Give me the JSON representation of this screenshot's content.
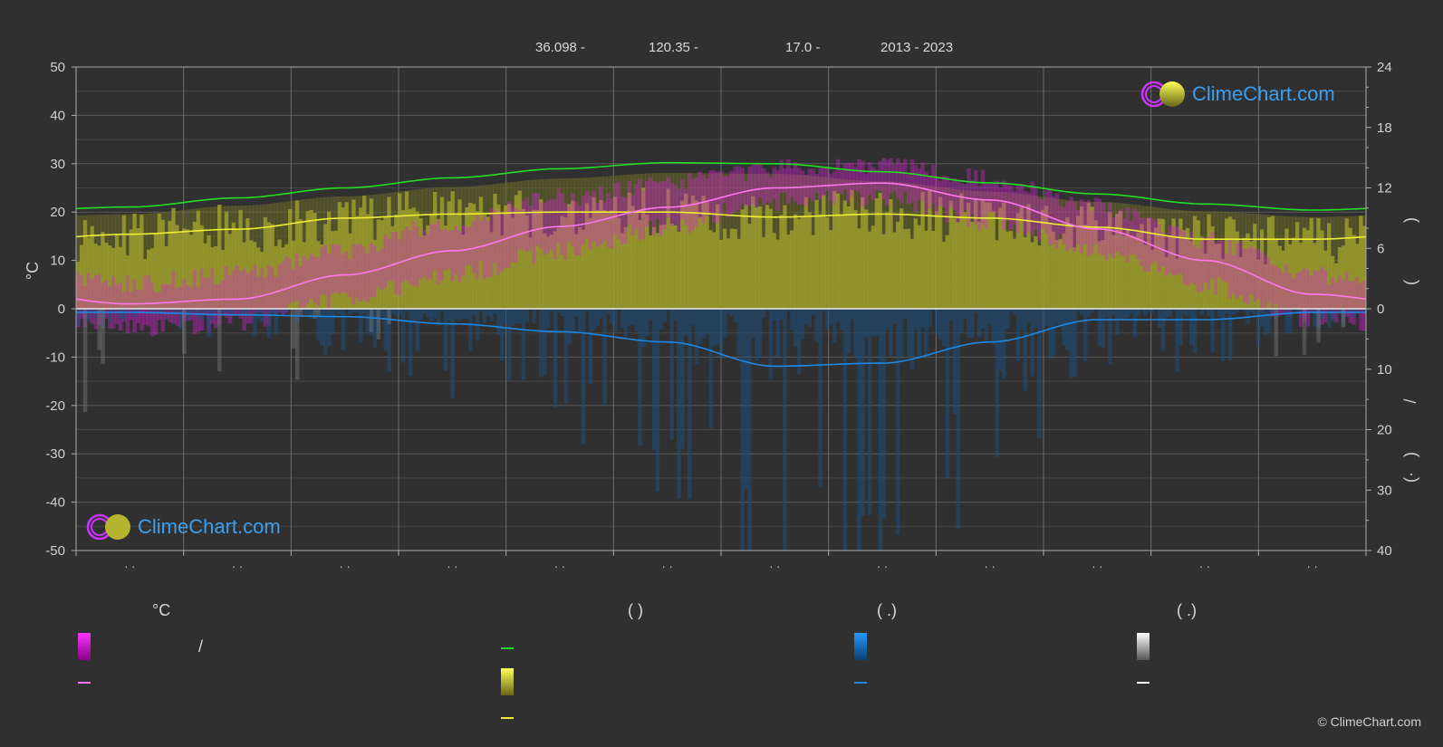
{
  "header": {
    "lat": "36.098 -",
    "lon": "120.35 -",
    "elev": "17.0 -",
    "years": "2013 - 2023"
  },
  "logo_text": "ClimeChart.com",
  "copyright": "© ClimeChart.com",
  "legend": {
    "col1_head": "°C",
    "col2_head": "(          )",
    "col3_head": "(   .)",
    "col4_head": "(   .)",
    "slash": "/"
  },
  "colors": {
    "background": "#303030",
    "temp_range": "#e020e0",
    "temp_mean": "#ff77ee",
    "daylight": "#22dd22",
    "sunshine": "#cccc33",
    "sunshine_mean": "#eeee33",
    "precip": "#1e88e5",
    "snow": "#ffffff"
  },
  "chart_data": {
    "type": "line",
    "left_axis": {
      "label": "°C",
      "ylim": [
        -50,
        50
      ],
      "ticks": [
        50,
        40,
        30,
        20,
        10,
        0,
        -10,
        -20,
        -30,
        -40,
        -50
      ]
    },
    "right_axis_top": {
      "ylim": [
        0,
        24
      ],
      "ticks": [
        24,
        18,
        12,
        6,
        0
      ]
    },
    "right_axis_bottom": {
      "ylim": [
        0,
        40
      ],
      "ticks": [
        0,
        10,
        20,
        30,
        40
      ]
    },
    "right_axis_labels": [
      ")",
      "(",
      "/",
      ")",
      "(·"
    ],
    "month_tick_labels": [
      "· ·",
      "· ·",
      "· ·",
      "· ·",
      "· ·",
      "· ·",
      "· ·",
      "· ·",
      "· ·",
      "· ·",
      "· ·",
      "· ·"
    ],
    "x_months": [
      0.5,
      1.5,
      2.5,
      3.5,
      4.5,
      5.5,
      6.5,
      7.5,
      8.5,
      9.5,
      10.5,
      11.5
    ],
    "series": [
      {
        "key": "daylight",
        "axis": "right_top",
        "values": [
          10.1,
          11.0,
          12.0,
          13.0,
          13.9,
          14.5,
          14.4,
          13.6,
          12.5,
          11.4,
          10.4,
          9.8
        ]
      },
      {
        "key": "sunshine_mean",
        "axis": "right_top",
        "values": [
          7.4,
          7.9,
          9.0,
          9.4,
          9.6,
          9.6,
          9.1,
          9.4,
          9.0,
          8.1,
          6.9,
          6.9
        ]
      },
      {
        "key": "temp_mean",
        "axis": "left",
        "values": [
          1.0,
          2.0,
          7.0,
          12.0,
          17.0,
          21.0,
          25.0,
          26.0,
          22.5,
          16.5,
          10.0,
          3.0
        ]
      },
      {
        "key": "precip_mean",
        "axis": "right_bottom",
        "values": [
          0.6,
          1.0,
          1.3,
          2.5,
          3.8,
          5.5,
          9.5,
          9.0,
          5.5,
          1.8,
          1.8,
          0.6
        ]
      }
    ],
    "temp_band": {
      "max": [
        5,
        7,
        12,
        18,
        23,
        26,
        29,
        30,
        27,
        21,
        14,
        7
      ],
      "min": [
        -4,
        -3,
        2,
        7,
        12,
        17,
        22,
        23,
        18,
        12,
        5,
        -2
      ]
    }
  }
}
